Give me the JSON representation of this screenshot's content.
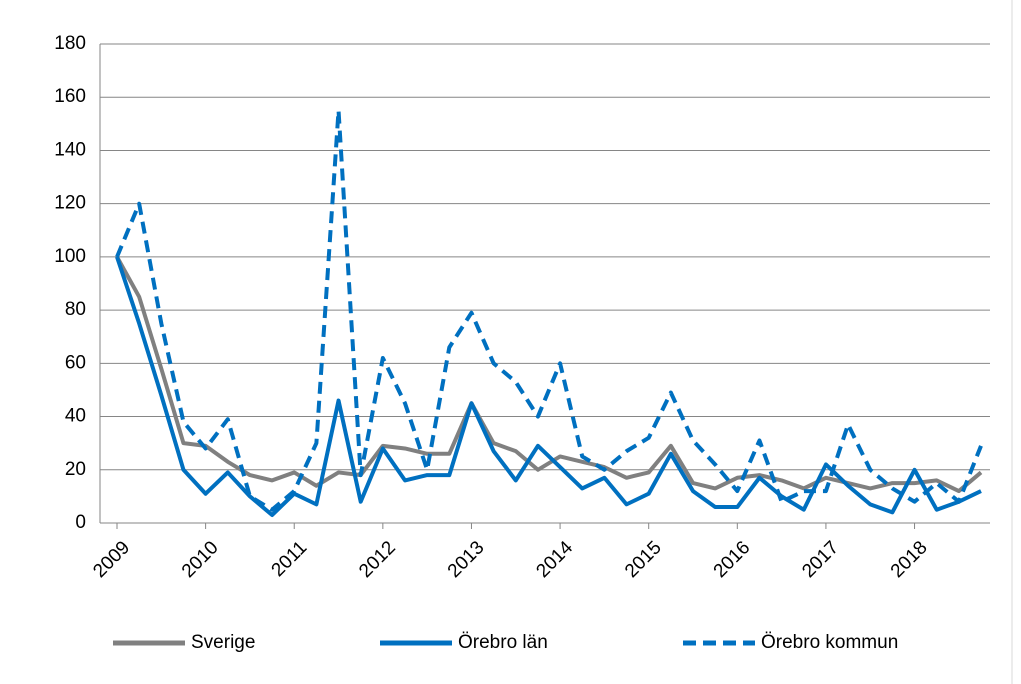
{
  "chart_data": {
    "type": "line",
    "categories": [
      "2009",
      null,
      null,
      null,
      "2010",
      null,
      null,
      null,
      "2011",
      null,
      null,
      null,
      "2012",
      null,
      null,
      null,
      "2013",
      null,
      null,
      null,
      "2014",
      null,
      null,
      null,
      "2015",
      null,
      null,
      null,
      "2016",
      null,
      null,
      null,
      "2017",
      null,
      null,
      null,
      "2018",
      null,
      null,
      null
    ],
    "series": [
      {
        "name": "Sverige",
        "color": "#808080",
        "dash": false,
        "values": [
          100,
          85,
          58,
          30,
          29,
          23,
          18,
          16,
          19,
          14,
          19,
          18,
          29,
          28,
          26,
          26,
          45,
          30,
          27,
          20,
          25,
          23,
          21,
          17,
          19,
          29,
          15,
          13,
          17,
          18,
          16,
          13,
          17,
          15,
          13,
          15,
          15,
          16,
          12,
          19
        ]
      },
      {
        "name": "Örebro län",
        "color": "#0070c0",
        "dash": false,
        "values": [
          100,
          75,
          48,
          20,
          11,
          19,
          10,
          3,
          11,
          7,
          46,
          8,
          28,
          16,
          18,
          18,
          45,
          27,
          16,
          29,
          21,
          13,
          17,
          7,
          11,
          26,
          12,
          6,
          6,
          17,
          10,
          5,
          22,
          14,
          7,
          4,
          20,
          5,
          8,
          12
        ]
      },
      {
        "name": "Örebro kommun",
        "color": "#0070c0",
        "dash": true,
        "values": [
          100,
          120,
          75,
          38,
          28,
          39,
          10,
          5,
          12,
          30,
          155,
          18,
          62,
          45,
          20,
          66,
          79,
          60,
          53,
          40,
          60,
          25,
          20,
          27,
          32,
          49,
          31,
          22,
          12,
          31,
          8,
          12,
          12,
          37,
          20,
          13,
          8,
          15,
          8,
          29
        ]
      }
    ],
    "ylim": [
      0,
      180
    ],
    "yticks": [
      0,
      20,
      40,
      60,
      80,
      100,
      120,
      140,
      160,
      180
    ],
    "grid": true,
    "legend": "bottom"
  }
}
